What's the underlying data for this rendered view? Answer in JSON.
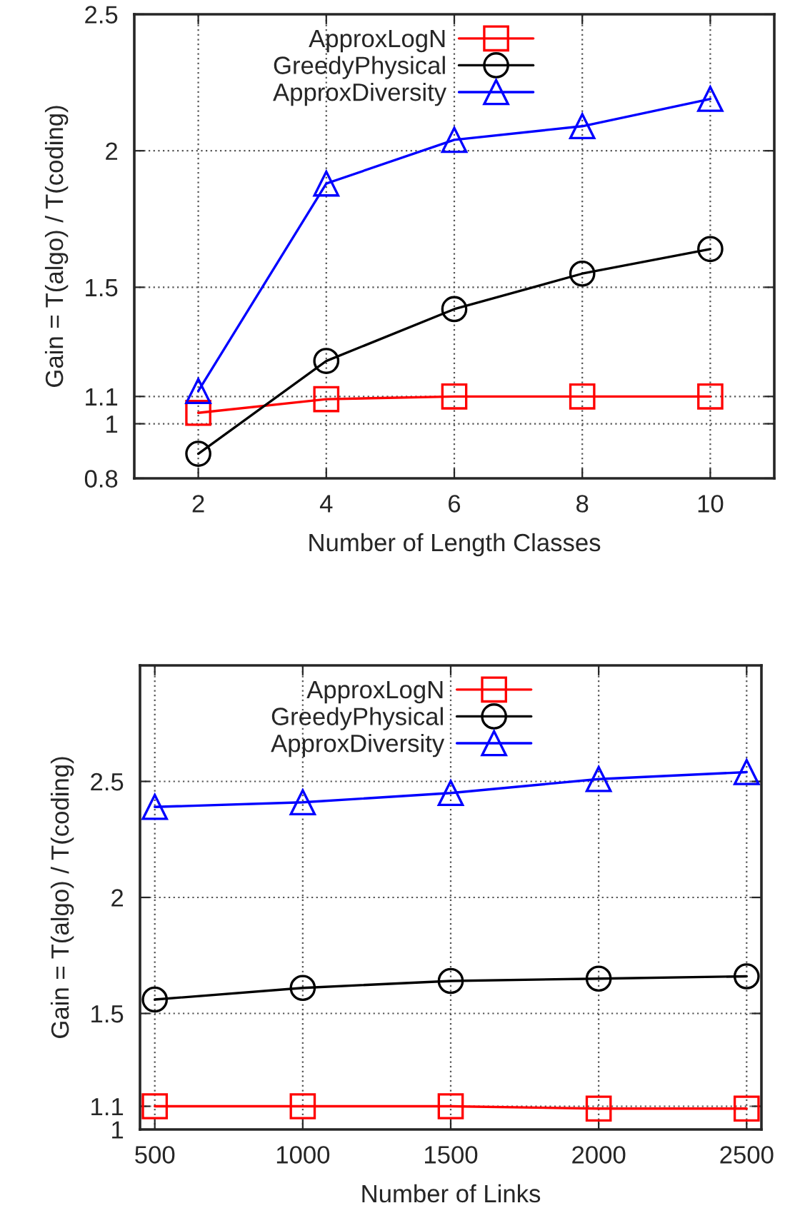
{
  "chart_data": [
    {
      "type": "line",
      "xlabel": "Number of Length Classes",
      "ylabel": "Gain = T(algo) / T(coding)",
      "x": [
        2,
        4,
        6,
        8,
        10
      ],
      "xlim": [
        1,
        11
      ],
      "xticks": [
        2,
        4,
        6,
        8,
        10
      ],
      "ylim": [
        0.8,
        2.5
      ],
      "yticks": [
        0.8,
        1,
        1.1,
        1.5,
        2,
        2.5
      ],
      "grid": true,
      "legend": "top",
      "line_style": "solid",
      "series": [
        {
          "name": "ApproxLogN",
          "color": "#ff0000",
          "marker": "square",
          "values": [
            1.04,
            1.09,
            1.1,
            1.1,
            1.1
          ]
        },
        {
          "name": "GreedyPhysical",
          "color": "#000000",
          "marker": "circle",
          "values": [
            0.89,
            1.23,
            1.42,
            1.55,
            1.64
          ]
        },
        {
          "name": "ApproxDiversity",
          "color": "#0000ff",
          "marker": "triangle",
          "values": [
            1.12,
            1.88,
            2.04,
            2.09,
            2.19
          ]
        }
      ]
    },
    {
      "type": "line",
      "xlabel": "Number of Links",
      "ylabel": "Gain = T(algo) / T(coding)",
      "x": [
        500,
        1000,
        1500,
        2000,
        2500
      ],
      "xlim": [
        450,
        2550
      ],
      "xticks": [
        500,
        1000,
        1500,
        2000,
        2500
      ],
      "ylim": [
        1,
        3
      ],
      "yticks": [
        1,
        1.1,
        1.5,
        2,
        2.5
      ],
      "grid": true,
      "legend": "top",
      "line_style": "solid",
      "series": [
        {
          "name": "ApproxLogN",
          "color": "#ff0000",
          "marker": "square",
          "values": [
            1.1,
            1.1,
            1.1,
            1.09,
            1.09
          ]
        },
        {
          "name": "GreedyPhysical",
          "color": "#000000",
          "marker": "circle",
          "values": [
            1.56,
            1.61,
            1.64,
            1.65,
            1.66
          ]
        },
        {
          "name": "ApproxDiversity",
          "color": "#0000ff",
          "marker": "triangle",
          "values": [
            2.39,
            2.41,
            2.45,
            2.51,
            2.54
          ]
        }
      ]
    }
  ]
}
